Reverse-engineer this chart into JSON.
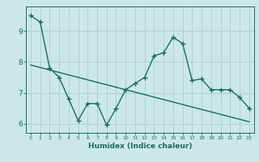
{
  "xlabel": "Humidex (Indice chaleur)",
  "ylabel": "",
  "bg_color": "#cce8e6",
  "line_color": "#1a6b5e",
  "grid_color": "#aad4d0",
  "x_data": [
    0,
    1,
    2,
    3,
    4,
    5,
    6,
    7,
    8,
    9,
    10,
    11,
    12,
    13,
    14,
    15,
    16,
    17,
    18,
    19,
    20,
    21,
    22,
    23
  ],
  "y_curve": [
    9.5,
    9.3,
    7.8,
    7.5,
    6.8,
    6.1,
    6.65,
    6.65,
    5.95,
    6.5,
    7.1,
    7.3,
    7.5,
    8.2,
    8.3,
    8.8,
    8.6,
    7.4,
    7.45,
    7.1,
    7.1,
    7.1,
    6.85,
    6.5
  ],
  "y_linear": [
    7.9,
    7.82,
    7.74,
    7.66,
    7.58,
    7.5,
    7.42,
    7.34,
    7.26,
    7.18,
    7.1,
    7.02,
    6.94,
    6.86,
    6.78,
    6.7,
    6.62,
    6.54,
    6.46,
    6.38,
    6.3,
    6.22,
    6.14,
    6.06
  ],
  "ylim": [
    5.7,
    9.8
  ],
  "xlim": [
    -0.5,
    23.5
  ],
  "yticks": [
    6,
    7,
    8,
    9
  ],
  "xticks": [
    0,
    1,
    2,
    3,
    4,
    5,
    6,
    7,
    8,
    9,
    10,
    11,
    12,
    13,
    14,
    15,
    16,
    17,
    18,
    19,
    20,
    21,
    22,
    23
  ],
  "marker": "+",
  "markersize": 4,
  "linewidth": 1.0
}
